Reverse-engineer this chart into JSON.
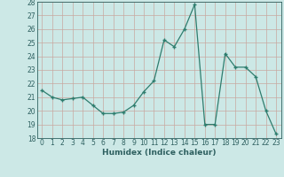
{
  "x": [
    0,
    1,
    2,
    3,
    4,
    5,
    6,
    7,
    8,
    9,
    10,
    11,
    12,
    13,
    14,
    15,
    16,
    17,
    18,
    19,
    20,
    21,
    22,
    23
  ],
  "y": [
    21.5,
    21.0,
    20.8,
    20.9,
    21.0,
    20.4,
    19.8,
    19.8,
    19.9,
    20.4,
    21.4,
    22.2,
    25.2,
    24.7,
    26.0,
    27.8,
    19.0,
    19.0,
    24.2,
    23.2,
    23.2,
    22.5,
    20.0,
    18.3
  ],
  "line_color": "#2e7d6e",
  "marker": "+",
  "marker_size": 3.5,
  "line_width": 0.9,
  "bg_color": "#cce8e6",
  "grid_color": "#b0d8d5",
  "xlabel": "Humidex (Indice chaleur)",
  "xlim": [
    -0.5,
    23.5
  ],
  "ylim": [
    18,
    28
  ],
  "yticks": [
    18,
    19,
    20,
    21,
    22,
    23,
    24,
    25,
    26,
    27,
    28
  ],
  "xticks": [
    0,
    1,
    2,
    3,
    4,
    5,
    6,
    7,
    8,
    9,
    10,
    11,
    12,
    13,
    14,
    15,
    16,
    17,
    18,
    19,
    20,
    21,
    22,
    23
  ],
  "xlabel_fontsize": 6.5,
  "tick_fontsize": 5.5
}
